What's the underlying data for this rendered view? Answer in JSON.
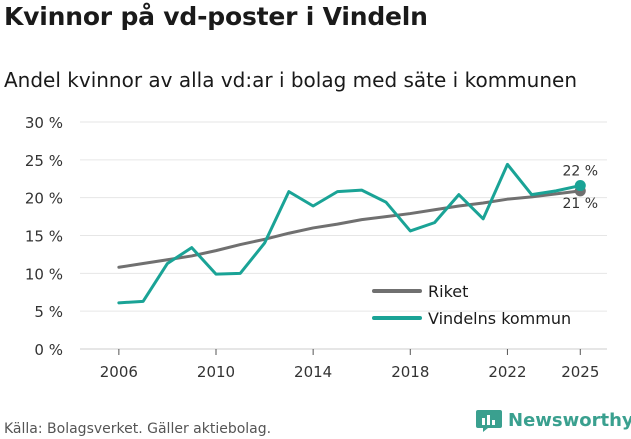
{
  "title": "Kvinnor på vd-poster i Vindeln",
  "subtitle": "Andel kvinnor av alla vd:ar i bolag med säte i kommunen",
  "source": "Källa: Bolagsverket. Gäller aktiebolag.",
  "brand": "Newsworthy",
  "colors": {
    "riket": "#707070",
    "vindeln": "#1aa396",
    "grid": "#e6e6e6",
    "brand": "#3aa08f"
  },
  "chart_data": {
    "type": "line",
    "title": "Kvinnor på vd-poster i Vindeln",
    "subtitle": "Andel kvinnor av alla vd:ar i bolag med säte i kommunen",
    "xlabel": "",
    "ylabel": "",
    "x": [
      2006,
      2007,
      2008,
      2009,
      2010,
      2011,
      2012,
      2013,
      2014,
      2015,
      2016,
      2017,
      2018,
      2019,
      2020,
      2021,
      2022,
      2023,
      2024,
      2025
    ],
    "xlim": [
      2006,
      2025
    ],
    "xticks": [
      2006,
      2010,
      2014,
      2018,
      2022,
      2025
    ],
    "xtick_labels": [
      "2006",
      "2010",
      "2014",
      "2018",
      "2022",
      "2025"
    ],
    "ylim": [
      0,
      30
    ],
    "yticks": [
      0,
      5,
      10,
      15,
      20,
      25,
      30
    ],
    "ytick_labels": [
      "0 %",
      "5 %",
      "10 %",
      "15 %",
      "20 %",
      "25 %",
      "30 %"
    ],
    "grid": true,
    "legend_position": "bottom-right",
    "series": [
      {
        "name": "Riket",
        "color": "#707070",
        "values": [
          10.8,
          11.3,
          11.8,
          12.3,
          13.0,
          13.8,
          14.5,
          15.3,
          16.0,
          16.5,
          17.1,
          17.5,
          17.9,
          18.4,
          18.9,
          19.3,
          19.8,
          20.1,
          20.5,
          20.9
        ],
        "end_label": "21 %"
      },
      {
        "name": "Vindelns kommun",
        "color": "#1aa396",
        "values": [
          6.1,
          6.3,
          11.3,
          13.4,
          9.9,
          10.0,
          14.0,
          20.8,
          18.9,
          20.8,
          21.0,
          19.4,
          15.6,
          16.7,
          20.4,
          17.2,
          24.4,
          20.4,
          20.9,
          21.6
        ],
        "end_label": "22 %"
      }
    ]
  }
}
